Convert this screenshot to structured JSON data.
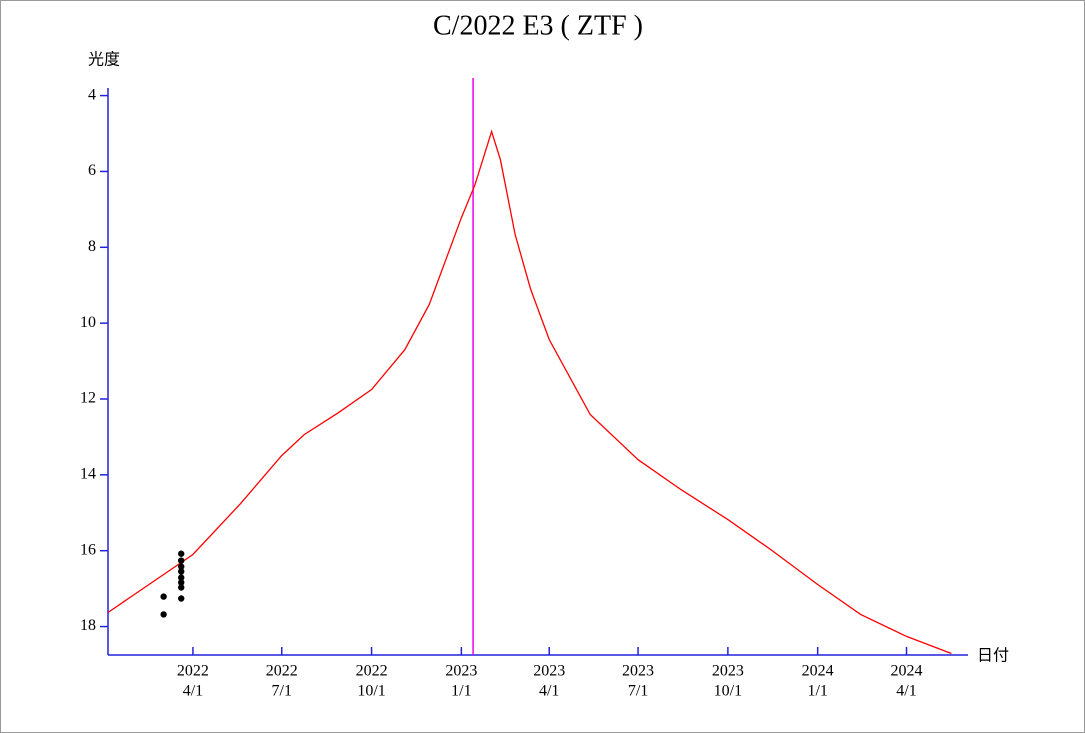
{
  "chart_data": {
    "type": "line",
    "title": "C/2022 E3 ( ZTF )",
    "y_label": "光度",
    "x_label": "日付",
    "xlim": [
      "2022-01-04",
      "2024-06-03"
    ],
    "xticks": [
      {
        "value": "2022-04-01",
        "label": [
          "2022",
          "4/1"
        ]
      },
      {
        "value": "2022-07-01",
        "label": [
          "2022",
          "7/1"
        ]
      },
      {
        "value": "2022-10-01",
        "label": [
          "2022",
          "10/1"
        ]
      },
      {
        "value": "2023-01-01",
        "label": [
          "2023",
          "1/1"
        ]
      },
      {
        "value": "2023-04-01",
        "label": [
          "2023",
          "4/1"
        ]
      },
      {
        "value": "2023-07-01",
        "label": [
          "2023",
          "7/1"
        ]
      },
      {
        "value": "2023-10-01",
        "label": [
          "2023",
          "10/1"
        ]
      },
      {
        "value": "2024-01-01",
        "label": [
          "2024",
          "1/1"
        ]
      },
      {
        "value": "2024-04-01",
        "label": [
          "2024",
          "4/1"
        ]
      }
    ],
    "ylim": [
      3.8,
      18.75
    ],
    "y_inverted": true,
    "yticks": [
      4,
      6,
      8,
      10,
      12,
      14,
      16,
      18
    ],
    "axis_color": "#2222dd",
    "perihelion_line": {
      "x": "2023-01-13",
      "color": "#ee00ee"
    },
    "series": [
      {
        "style": "line",
        "color": "#ff0000",
        "x": [
          "2022-01-04",
          "2022-04-01",
          "2022-05-19",
          "2022-07-01",
          "2022-07-24",
          "2022-08-28",
          "2022-10-01",
          "2022-11-04",
          "2022-11-29",
          "2023-01-01",
          "2023-01-15",
          "2023-02-01",
          "2023-02-10",
          "2023-02-25",
          "2023-03-13",
          "2023-04-01",
          "2023-05-13",
          "2023-07-01",
          "2023-08-14",
          "2023-10-01",
          "2023-11-14",
          "2024-01-01",
          "2024-02-14",
          "2024-04-01",
          "2024-05-17"
        ],
        "values": [
          17.63,
          16.1,
          14.78,
          13.49,
          12.94,
          12.36,
          11.75,
          10.7,
          9.51,
          7.22,
          6.35,
          4.95,
          5.69,
          7.66,
          9.11,
          10.43,
          12.41,
          13.6,
          14.39,
          15.18,
          15.97,
          16.89,
          17.68,
          18.26,
          18.71
        ]
      },
      {
        "style": "points",
        "color": "#000000",
        "x": [
          "2022-03-02",
          "2022-03-02",
          "2022-03-20",
          "2022-03-20",
          "2022-03-20",
          "2022-03-20",
          "2022-03-20",
          "2022-03-20",
          "2022-03-20",
          "2022-03-20"
        ],
        "values": [
          17.21,
          17.68,
          16.08,
          16.26,
          16.42,
          16.55,
          16.71,
          16.84,
          16.97,
          17.26
        ]
      }
    ]
  }
}
